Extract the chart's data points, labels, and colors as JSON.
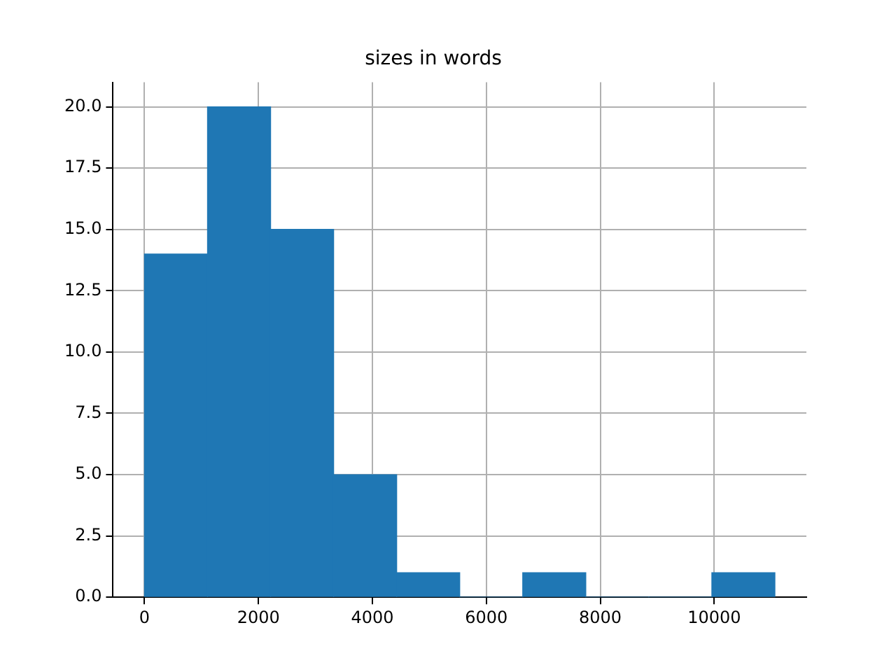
{
  "chart_data": {
    "type": "histogram",
    "title": "sizes in words",
    "bins": [
      0,
      1106.5,
      2213,
      3319.5,
      4426,
      5532.5,
      6639,
      7745.5,
      8852,
      9958.5,
      11065
    ],
    "values": [
      14,
      20,
      15,
      5,
      1,
      0,
      1,
      0,
      0,
      1
    ],
    "color": "#1f77b4",
    "xlim": [
      -553,
      11618
    ],
    "xticks": [
      0,
      2000,
      4000,
      6000,
      8000,
      10000
    ],
    "ylim": [
      0,
      21
    ],
    "yticks": [
      {
        "value": 0,
        "label": "0.0"
      },
      {
        "value": 2.5,
        "label": "2.5"
      },
      {
        "value": 5,
        "label": "5.0"
      },
      {
        "value": 7.5,
        "label": "7.5"
      },
      {
        "value": 10,
        "label": "10.0"
      },
      {
        "value": 12.5,
        "label": "12.5"
      },
      {
        "value": 15,
        "label": "15.0"
      },
      {
        "value": 17.5,
        "label": "17.5"
      },
      {
        "value": 20,
        "label": "20.0"
      }
    ],
    "grid": true,
    "legend": false
  }
}
